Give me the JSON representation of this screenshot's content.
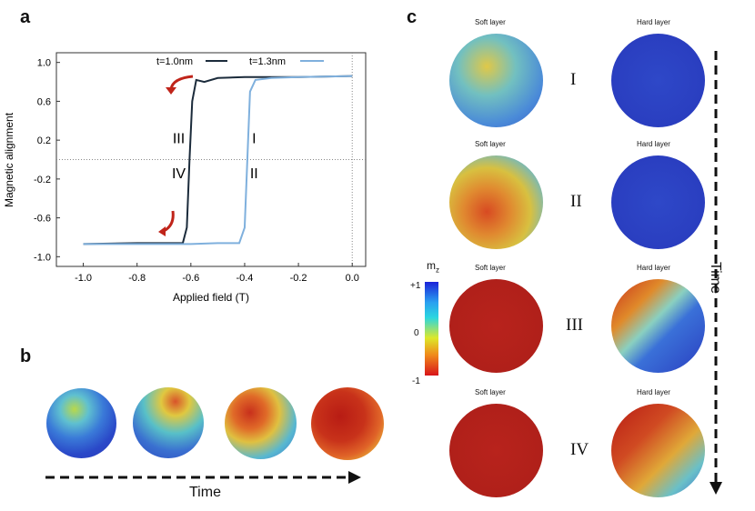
{
  "panels": {
    "a": "a",
    "b": "b",
    "c": "c"
  },
  "chart_data": {
    "type": "line",
    "xlabel": "Applied field (T)",
    "ylabel": "Magnetic alignment",
    "xlim": [
      -1.1,
      0.05
    ],
    "ylim": [
      -1.1,
      1.1
    ],
    "xticks": [
      -1.0,
      -0.8,
      -0.6,
      -0.4,
      -0.2,
      0.0
    ],
    "xtick_labels": [
      "-1.0",
      "-0.8",
      "-0.6",
      "-0.4",
      "-0.2",
      "0.0"
    ],
    "yticks": [
      1.0,
      0.6,
      0.2,
      -0.2,
      -0.6,
      -1.0
    ],
    "ytick_labels": [
      "1.0",
      "0.6",
      "0.2",
      "-0.2",
      "-0.6",
      "-1.0"
    ],
    "grid": false,
    "reference_lines": {
      "x": 0.0,
      "y": 0.0,
      "style": "dotted"
    },
    "legend": {
      "placement": "top-right"
    },
    "series": [
      {
        "name": "t=1.0nm",
        "color": "#1b2b3b",
        "x": [
          -1.0,
          -0.8,
          -0.7,
          -0.63,
          -0.615,
          -0.605,
          -0.595,
          -0.58,
          -0.55,
          -0.5,
          -0.4,
          -0.2,
          0.0
        ],
        "y": [
          -0.87,
          -0.86,
          -0.86,
          -0.86,
          -0.7,
          0.0,
          0.6,
          0.82,
          0.8,
          0.84,
          0.85,
          0.85,
          0.86
        ]
      },
      {
        "name": "t=1.3nm",
        "color": "#7fb0dd",
        "x": [
          -1.0,
          -0.8,
          -0.6,
          -0.5,
          -0.42,
          -0.4,
          -0.39,
          -0.38,
          -0.36,
          -0.3,
          -0.2,
          0.0
        ],
        "y": [
          -0.87,
          -0.87,
          -0.87,
          -0.86,
          -0.86,
          -0.7,
          0.0,
          0.7,
          0.82,
          0.84,
          0.85,
          0.86
        ]
      }
    ],
    "annotations": [
      {
        "text": "III",
        "x": -0.645,
        "y": 0.17
      },
      {
        "text": "I",
        "x": -0.365,
        "y": 0.17
      },
      {
        "text": "IV",
        "x": -0.645,
        "y": -0.19
      },
      {
        "text": "II",
        "x": -0.365,
        "y": -0.19
      }
    ]
  },
  "panel_b": {
    "time_label": "Time",
    "circle_colors": [
      "#2f5fd0",
      "#4a8ad8",
      "#d04a28",
      "#c32418"
    ]
  },
  "panel_c": {
    "layer_labels": {
      "soft": "Soft layer",
      "hard": "Hard layer"
    },
    "rows": [
      {
        "roman": "I",
        "soft_color": "#5fb8c8",
        "hard_color": "#2b43c8"
      },
      {
        "roman": "II",
        "soft_color": "#d67a3a",
        "hard_color": "#2b43c8"
      },
      {
        "roman": "III",
        "soft_color": "#b8231c",
        "hard_color": "#8b7a72"
      },
      {
        "roman": "IV",
        "soft_color": "#b8231c",
        "hard_color": "#c96a3a"
      }
    ],
    "colorbar": {
      "title": "m",
      "subscript": "z",
      "max": "+1",
      "mid": "0",
      "min": "-1",
      "colors": [
        "#1a22d8",
        "#2aa0f0",
        "#2ad6e0",
        "#dde82a",
        "#f08a1a",
        "#d8141a"
      ]
    },
    "time_label": "Time"
  }
}
